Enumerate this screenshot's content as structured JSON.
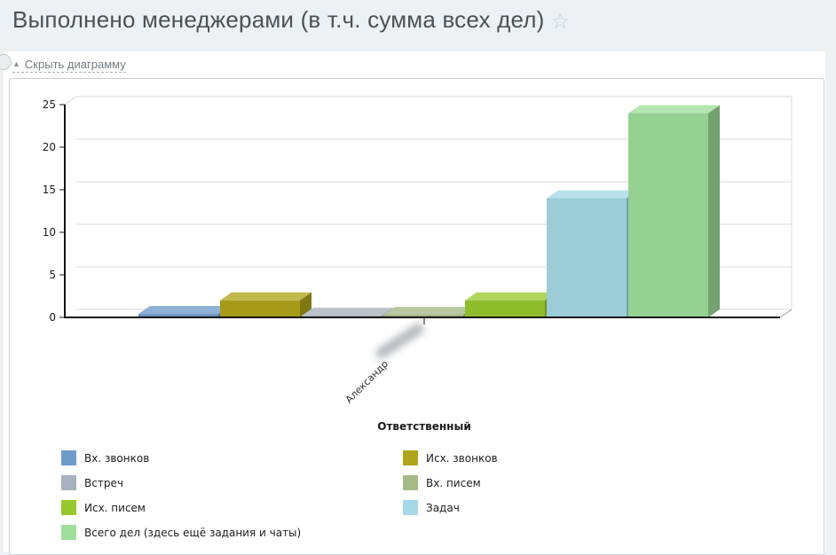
{
  "header": {
    "title": "Выполнено менеджерами (в т.ч. сумма всех дел)",
    "favorite_star_icon": "☆"
  },
  "controls": {
    "hide_chart_label": "Скрыть диаграмму",
    "collapse_arrow_icon": "▲"
  },
  "chart_data": {
    "type": "bar",
    "style": "3d-column",
    "title": "",
    "xlabel": "Ответственный",
    "ylabel": "",
    "categories": [
      "Александр"
    ],
    "category_redacted": true,
    "ylim": [
      0,
      25
    ],
    "yticks": [
      0,
      5,
      10,
      15,
      20,
      25
    ],
    "grid": true,
    "legend_position": "bottom-two-columns",
    "series": [
      {
        "name": "Вх. звонков",
        "color": "#6e9bc9",
        "values": [
          0.4
        ]
      },
      {
        "name": "Исх. звонков",
        "color": "#b0a51a",
        "values": [
          2
        ]
      },
      {
        "name": "Встреч",
        "color": "#a7b1be",
        "values": [
          0.2
        ]
      },
      {
        "name": "Вх. писем",
        "color": "#a4ba87",
        "values": [
          0.3
        ]
      },
      {
        "name": "Исх. писем",
        "color": "#98c82e",
        "values": [
          2
        ]
      },
      {
        "name": "Задач",
        "color": "#a5d9e5",
        "values": [
          14
        ]
      },
      {
        "name": "Всего дел (здесь ещё задания и чаты)",
        "color": "#9fdf9b",
        "values": [
          24
        ]
      }
    ]
  }
}
